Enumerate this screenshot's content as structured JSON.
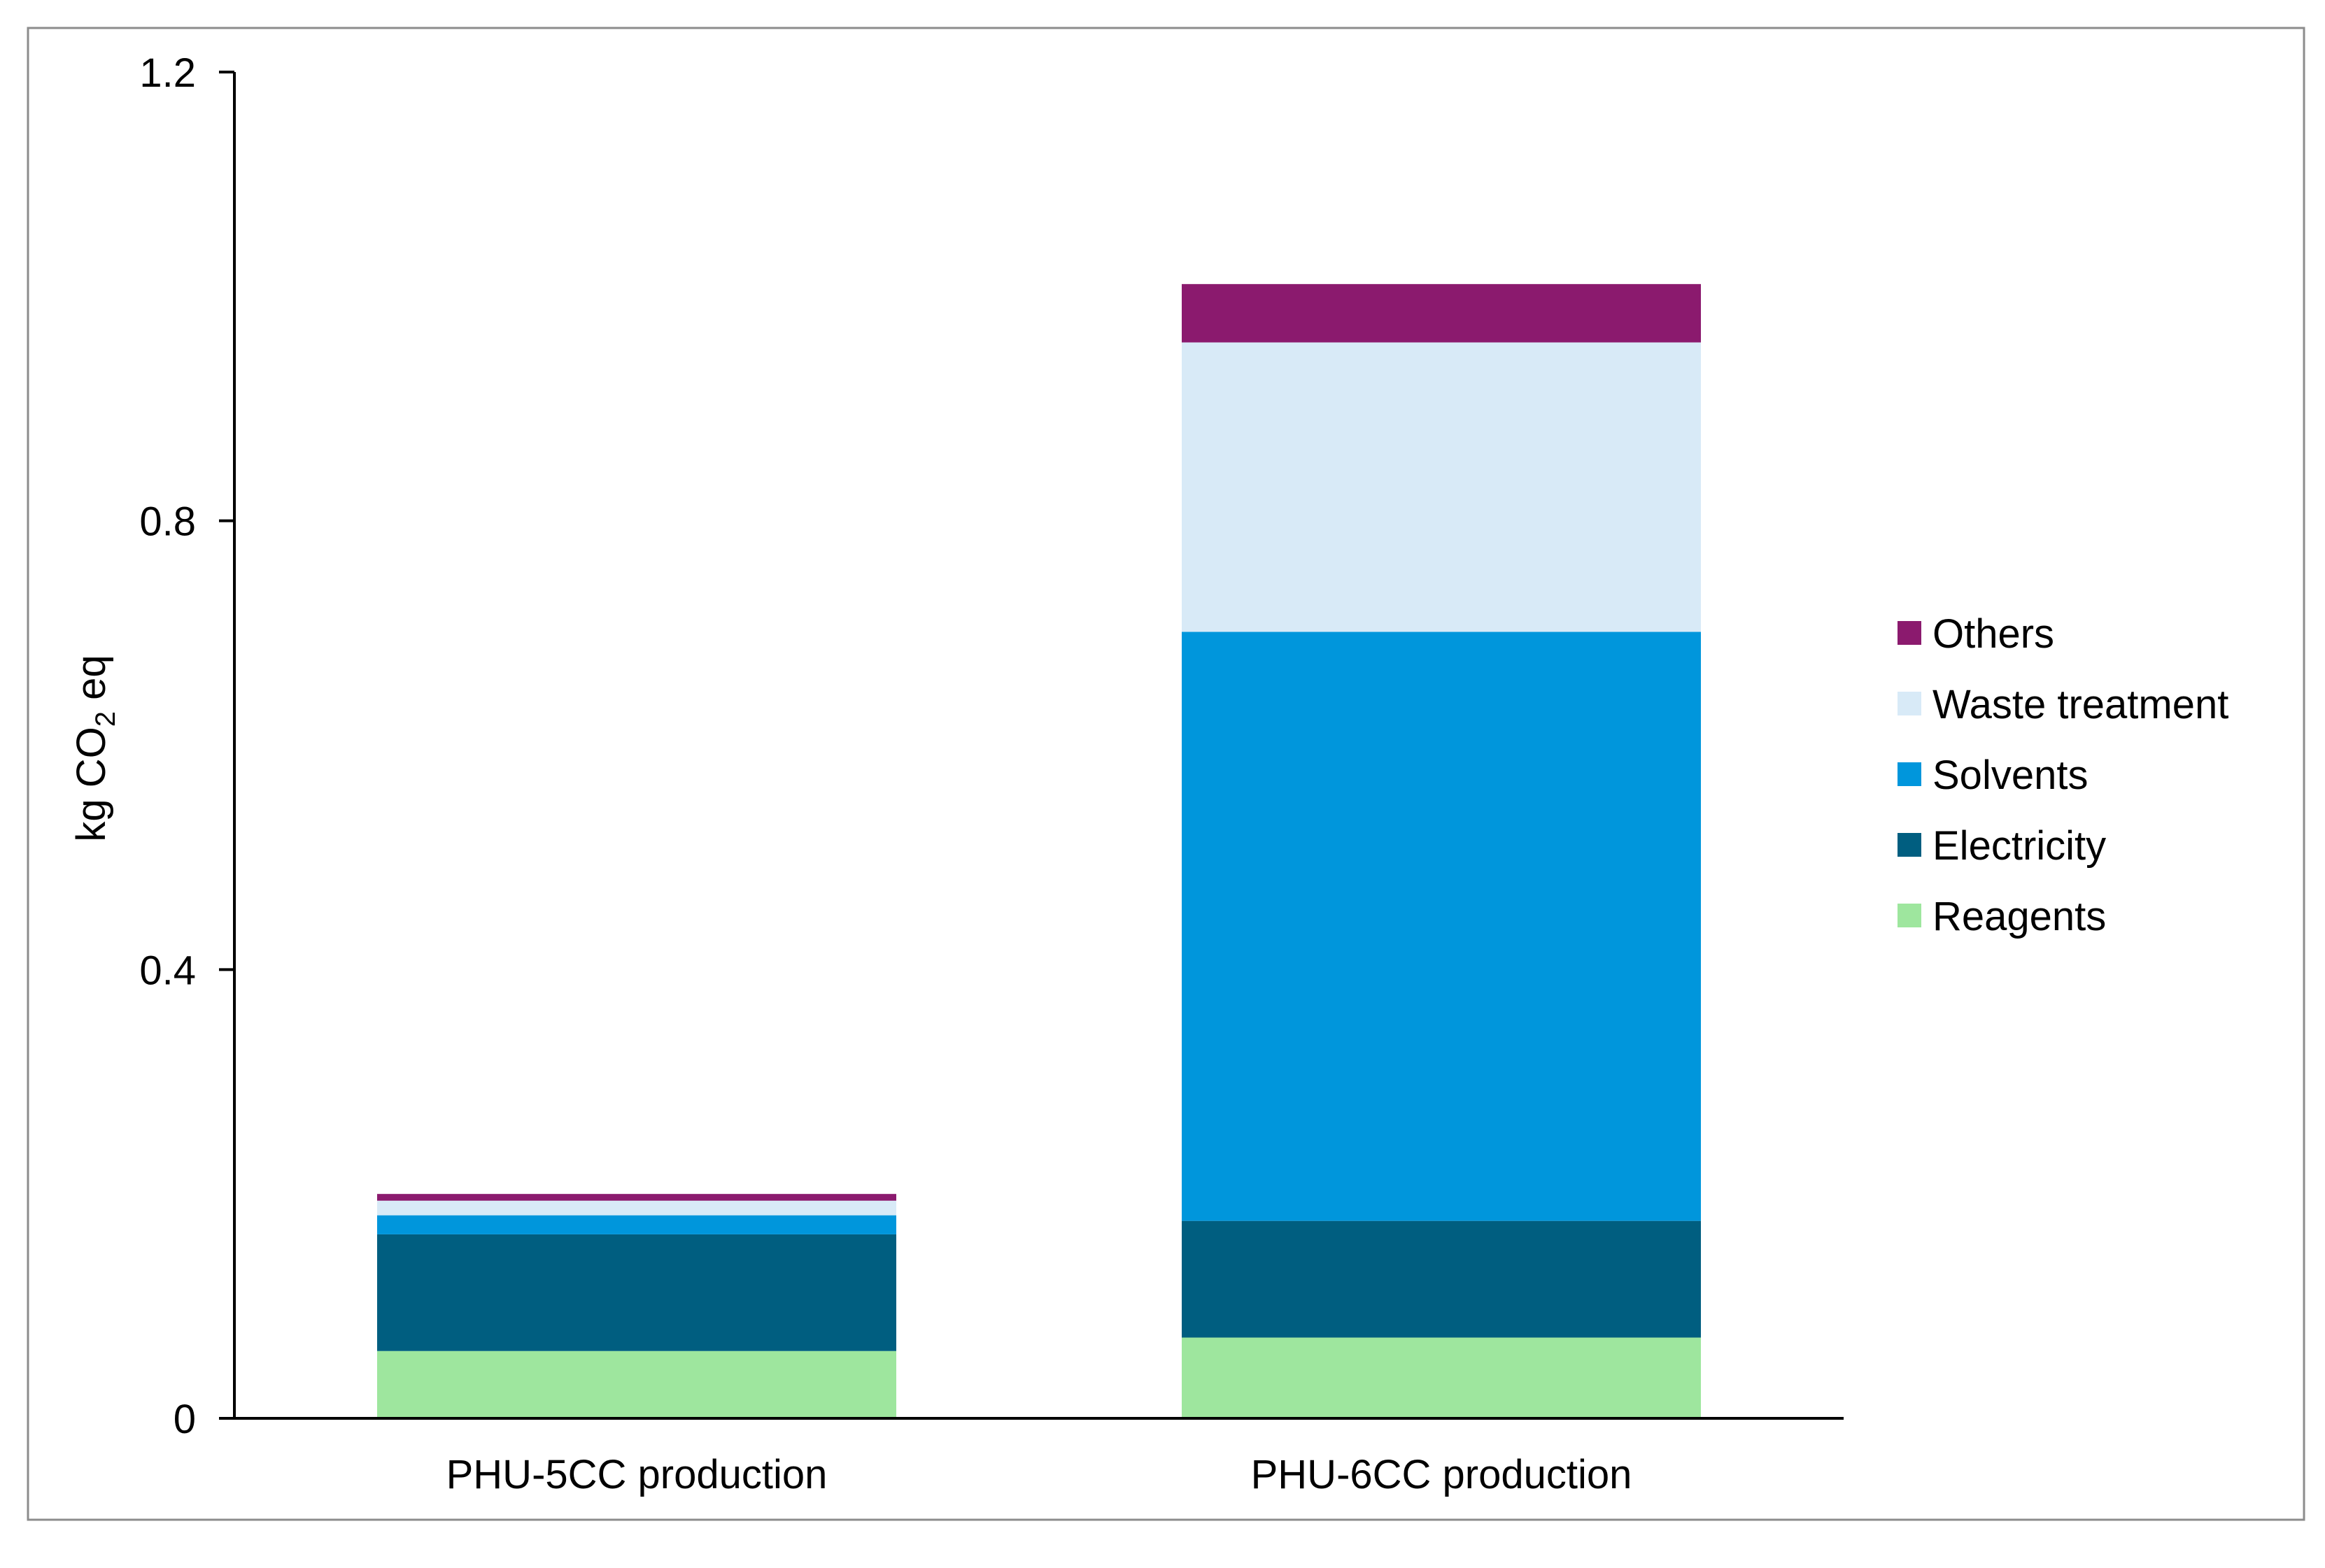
{
  "chart_data": {
    "type": "bar",
    "stacked": true,
    "title": "",
    "xlabel": "",
    "ylabel": {
      "prefix": "kg CO",
      "subscript": "2",
      "suffix": " eq"
    },
    "ylim": [
      0,
      1.2
    ],
    "yticks": [
      {
        "value": 0,
        "label": "0"
      },
      {
        "value": 0.4,
        "label": "0.4"
      },
      {
        "value": 0.8,
        "label": "0.8"
      },
      {
        "value": 1.2,
        "label": "1.2"
      }
    ],
    "categories": [
      "PHU-5CC production",
      "PHU-6CC production"
    ],
    "series": [
      {
        "name": "Reagents",
        "color": "#9ee69e",
        "values": [
          0.06,
          0.072
        ]
      },
      {
        "name": "Electricity",
        "color": "#005e80",
        "values": [
          0.104,
          0.104
        ]
      },
      {
        "name": "Solvents",
        "color": "#0096dc",
        "values": [
          0.017,
          0.525
        ]
      },
      {
        "name": "Waste treatment",
        "color": "#d8eaf7",
        "values": [
          0.013,
          0.258
        ]
      },
      {
        "name": "Others",
        "color": "#8b1a6e",
        "values": [
          0.006,
          0.052
        ]
      }
    ],
    "legend": {
      "position": "right",
      "order": [
        "Others",
        "Waste treatment",
        "Solvents",
        "Electricity",
        "Reagents"
      ]
    },
    "grid": false,
    "frame": true
  }
}
